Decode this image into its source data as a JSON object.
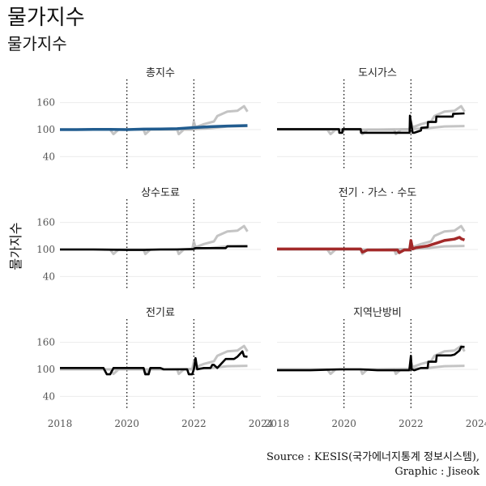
{
  "title": "물가지수",
  "subtitle": "물가지수",
  "ylabel": "물가지수",
  "caption_line1": "Source : KESIS(국가에너지통계 정보시스템),",
  "caption_line2": "Graphic : Jiseok",
  "colors": {
    "highlight_blue": "#215C8F",
    "highlight_red": "#A32A2A",
    "black": "#000000",
    "background_lines": "#BEBEBE",
    "grid": "#EBEBEB"
  },
  "chart_data": {
    "type": "line",
    "layout": "facet 3x2",
    "xlim": [
      2018,
      2024
    ],
    "ylim": [
      10,
      190
    ],
    "x_ticks": [
      2018,
      2020,
      2022,
      2024
    ],
    "y_ticks": [
      40,
      100,
      160
    ],
    "vlines": [
      2020,
      2022
    ],
    "grid": "horizontal",
    "background_series": [
      {
        "x": [
          2018.0,
          2018.5,
          2019.0,
          2019.5,
          2019.6,
          2019.75,
          2020.0,
          2020.5,
          2020.55,
          2020.7,
          2021.0,
          2021.5,
          2021.55,
          2021.7,
          2021.95,
          2022.0,
          2022.05,
          2022.3,
          2022.6,
          2022.7,
          2023.0,
          2023.3,
          2023.5,
          2023.6
        ],
        "y": [
          100,
          100,
          100,
          100,
          90,
          100,
          100,
          100,
          90,
          100,
          100,
          100,
          90,
          100,
          100,
          118,
          105,
          112,
          118,
          130,
          140,
          142,
          152,
          140
        ]
      },
      {
        "x": [
          2018.0,
          2019.0,
          2020.0,
          2021.0,
          2022.0,
          2022.5,
          2023.0,
          2023.6
        ],
        "y": [
          100,
          100,
          100,
          100,
          101,
          103,
          107,
          108
        ]
      }
    ],
    "panels": [
      {
        "name": "총지수",
        "color": "#215C8F",
        "x": [
          2018.0,
          2018.5,
          2019.0,
          2019.5,
          2020.0,
          2020.5,
          2021.0,
          2021.5,
          2022.0,
          2022.5,
          2023.0,
          2023.6
        ],
        "y": [
          100,
          100,
          100.5,
          100.5,
          100,
          101,
          101.5,
          102,
          104.5,
          106.5,
          108,
          109
        ]
      },
      {
        "name": "도시가스",
        "color": "#000000",
        "x": [
          2018.0,
          2019.0,
          2019.85,
          2019.86,
          2019.95,
          2019.96,
          2020.5,
          2020.51,
          2021.0,
          2021.5,
          2021.96,
          2021.97,
          2022.05,
          2022.1,
          2022.3,
          2022.31,
          2022.5,
          2022.51,
          2022.75,
          2022.76,
          2023.0,
          2023.25,
          2023.26,
          2023.6
        ],
        "y": [
          101,
          101,
          101,
          93,
          93,
          101,
          101,
          93,
          93,
          93,
          93,
          131,
          93,
          93,
          98,
          104,
          105,
          117,
          117,
          129,
          129,
          129,
          135,
          136
        ]
      },
      {
        "name": "상수도료",
        "color": "#000000",
        "x": [
          2018.0,
          2019.0,
          2020.0,
          2020.5,
          2021.0,
          2021.5,
          2022.0,
          2022.05,
          2022.5,
          2022.95,
          2023.0,
          2023.6
        ],
        "y": [
          100,
          100,
          99,
          99,
          100,
          100,
          101,
          103,
          103,
          103,
          107,
          107
        ]
      },
      {
        "name": "전기 · 가스 · 수도",
        "color": "#A32A2A",
        "x": [
          2018.0,
          2018.8,
          2019.5,
          2020.0,
          2020.4,
          2020.5,
          2020.55,
          2020.7,
          2021.0,
          2021.3,
          2021.6,
          2021.65,
          2021.8,
          2021.96,
          2022.0,
          2022.05,
          2022.15,
          2022.5,
          2022.8,
          2023.0,
          2023.3,
          2023.45,
          2023.5,
          2023.6
        ],
        "y": [
          101,
          101,
          101,
          101,
          101,
          101,
          94,
          99,
          99,
          99,
          99,
          93,
          99,
          99,
          120,
          101,
          104,
          108,
          115,
          120,
          123,
          127,
          124,
          121
        ]
      },
      {
        "name": "전기료",
        "color": "#000000",
        "x": [
          2018.0,
          2019.3,
          2019.4,
          2019.5,
          2019.6,
          2019.95,
          2020.5,
          2020.55,
          2020.65,
          2020.7,
          2021.0,
          2021.1,
          2021.3,
          2021.8,
          2021.85,
          2021.95,
          2022.0,
          2022.05,
          2022.1,
          2022.3,
          2022.5,
          2022.55,
          2022.6,
          2022.7,
          2022.95,
          2023.2,
          2023.3,
          2023.45,
          2023.5,
          2023.6
        ],
        "y": [
          103,
          103,
          89,
          89,
          103,
          103,
          103,
          89,
          89,
          103,
          103,
          100,
          100,
          100,
          89,
          89,
          100,
          125,
          100,
          103,
          103,
          110,
          110,
          103,
          123,
          123,
          128,
          140,
          129,
          128
        ]
      },
      {
        "name": "지역난방비",
        "color": "#000000",
        "x": [
          2018.0,
          2019.0,
          2019.9,
          2020.5,
          2021.0,
          2021.5,
          2021.95,
          2022.0,
          2022.02,
          2022.1,
          2022.3,
          2022.5,
          2022.52,
          2022.75,
          2022.77,
          2023.0,
          2023.2,
          2023.3,
          2023.45,
          2023.5,
          2023.6
        ],
        "y": [
          98,
          98,
          100,
          100,
          98,
          98,
          98,
          130,
          100,
          98,
          103,
          103,
          117,
          117,
          131,
          131,
          131,
          133,
          142,
          150,
          150
        ]
      }
    ]
  }
}
